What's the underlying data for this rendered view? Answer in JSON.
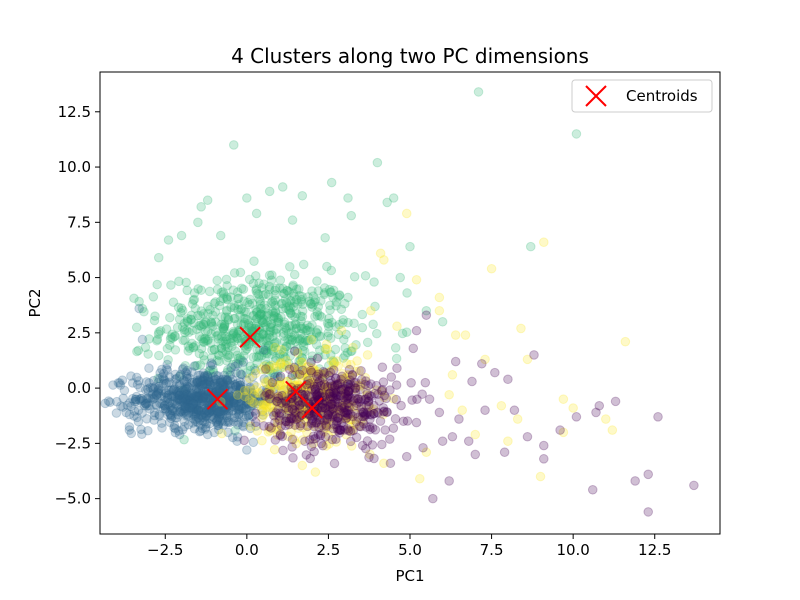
{
  "chart_data": {
    "type": "scatter",
    "title": "4 Clusters along two PC dimensions",
    "xlabel": "PC1",
    "ylabel": "PC2",
    "xlim": [
      -4.5,
      14.5
    ],
    "ylim": [
      -6.6,
      14.3
    ],
    "xticks": [
      -2.5,
      0.0,
      2.5,
      5.0,
      7.5,
      10.0,
      12.5
    ],
    "yticks": [
      -5.0,
      -2.5,
      0.0,
      2.5,
      5.0,
      7.5,
      10.0,
      12.5
    ],
    "grid": false,
    "legend_position": "top-right",
    "cluster_colors": [
      "#440154",
      "#31688e",
      "#35b779",
      "#fde725"
    ],
    "centroid_color": "#ff0000",
    "series": [
      {
        "cluster": 0,
        "color": "#440154",
        "core": {
          "center": [
            2.6,
            -0.8
          ],
          "spread": [
            1.0,
            0.9
          ],
          "count": 420
        },
        "points": [
          [
            13.7,
            -4.4
          ],
          [
            12.3,
            -5.6
          ],
          [
            12.3,
            -3.9
          ],
          [
            11.9,
            -4.2
          ],
          [
            10.6,
            -4.6
          ],
          [
            12.6,
            -1.3
          ],
          [
            11.3,
            -0.6
          ],
          [
            10.8,
            -0.8
          ],
          [
            10.7,
            -1.1
          ],
          [
            10.1,
            -1.3
          ],
          [
            9.6,
            -1.9
          ],
          [
            9.1,
            -2.6
          ],
          [
            9.1,
            -3.2
          ],
          [
            8.6,
            -2.2
          ],
          [
            8.2,
            -1.0
          ],
          [
            7.6,
            0.7
          ],
          [
            7.3,
            -1.0
          ],
          [
            7.0,
            -3.0
          ],
          [
            6.8,
            -2.4
          ],
          [
            6.5,
            -1.4
          ],
          [
            6.3,
            -2.2
          ],
          [
            6.2,
            -4.2
          ],
          [
            5.7,
            -5.0
          ],
          [
            5.6,
            -0.5
          ],
          [
            5.5,
            3.3
          ],
          [
            5.2,
            2.6
          ],
          [
            6.4,
            1.2
          ],
          [
            7.2,
            1.1
          ],
          [
            8.8,
            1.5
          ],
          [
            8.0,
            0.4
          ],
          [
            6.9,
            0.3
          ],
          [
            4.9,
            -3.1
          ],
          [
            5.4,
            -2.7
          ],
          [
            4.6,
            0.9
          ],
          [
            5.1,
            1.8
          ],
          [
            4.8,
            -1.5
          ],
          [
            6.0,
            -2.4
          ],
          [
            5.9,
            -1.1
          ],
          [
            4.4,
            -3.4
          ],
          [
            7.9,
            -2.9
          ]
        ]
      },
      {
        "cluster": 1,
        "color": "#31688e",
        "core": {
          "center": [
            -1.3,
            -0.5
          ],
          "spread": [
            1.1,
            0.65
          ],
          "count": 750
        },
        "points": [
          [
            -3.7,
            -1.1
          ],
          [
            -3.6,
            -1.9
          ],
          [
            -3.3,
            3.6
          ],
          [
            -3.2,
            2.2
          ],
          [
            -3.4,
            -0.6
          ],
          [
            -3.0,
            0.9
          ],
          [
            -0.3,
            -2.4
          ],
          [
            0.0,
            -2.8
          ],
          [
            -1.2,
            -2.1
          ],
          [
            -2.6,
            -1.8
          ]
        ]
      },
      {
        "cluster": 2,
        "color": "#35b779",
        "core": {
          "center": [
            0.4,
            2.7
          ],
          "spread": [
            1.5,
            1.2
          ],
          "count": 650
        },
        "points": [
          [
            7.1,
            13.4
          ],
          [
            10.1,
            11.5
          ],
          [
            -0.4,
            11.0
          ],
          [
            4.0,
            10.2
          ],
          [
            2.6,
            9.3
          ],
          [
            1.1,
            9.1
          ],
          [
            0.7,
            8.9
          ],
          [
            1.7,
            8.7
          ],
          [
            4.5,
            8.6
          ],
          [
            4.3,
            8.4
          ],
          [
            3.1,
            8.6
          ],
          [
            -1.4,
            8.2
          ],
          [
            -1.2,
            8.5
          ],
          [
            0.0,
            8.6
          ],
          [
            -2.4,
            6.7
          ],
          [
            -1.5,
            7.5
          ],
          [
            8.7,
            6.4
          ],
          [
            3.2,
            7.8
          ],
          [
            5.0,
            6.4
          ],
          [
            4.7,
            5.0
          ],
          [
            5.5,
            3.5
          ],
          [
            -2.7,
            5.9
          ],
          [
            -3.2,
            3.6
          ],
          [
            -2.0,
            6.9
          ],
          [
            3.9,
            4.8
          ],
          [
            2.4,
            6.8
          ],
          [
            1.4,
            7.6
          ],
          [
            0.3,
            7.9
          ],
          [
            6.0,
            3.0
          ],
          [
            -0.8,
            6.9
          ]
        ]
      },
      {
        "cluster": 3,
        "color": "#fde725",
        "core": {
          "center": [
            1.9,
            -0.4
          ],
          "spread": [
            0.9,
            0.9
          ],
          "count": 420
        },
        "points": [
          [
            7.5,
            5.4
          ],
          [
            9.1,
            6.6
          ],
          [
            11.6,
            2.1
          ],
          [
            10.0,
            -0.9
          ],
          [
            9.7,
            -0.5
          ],
          [
            11.0,
            -1.4
          ],
          [
            11.2,
            -1.9
          ],
          [
            9.0,
            -4.0
          ],
          [
            8.4,
            2.7
          ],
          [
            8.6,
            1.3
          ],
          [
            7.3,
            1.3
          ],
          [
            6.7,
            2.4
          ],
          [
            6.4,
            2.4
          ],
          [
            5.9,
            3.5
          ],
          [
            4.9,
            7.9
          ],
          [
            4.2,
            5.8
          ],
          [
            5.2,
            4.9
          ],
          [
            4.1,
            6.1
          ],
          [
            6.2,
            -0.3
          ],
          [
            7.8,
            -0.8
          ],
          [
            8.3,
            -1.4
          ],
          [
            7.0,
            -2.1
          ],
          [
            5.3,
            -4.1
          ],
          [
            1.7,
            -3.5
          ],
          [
            2.1,
            -3.8
          ],
          [
            4.2,
            -3.4
          ],
          [
            3.7,
            1.5
          ],
          [
            4.6,
            2.8
          ],
          [
            2.9,
            2.6
          ],
          [
            3.8,
            3.5
          ],
          [
            6.3,
            0.6
          ],
          [
            6.6,
            -1.0
          ],
          [
            8.0,
            -2.4
          ],
          [
            5.9,
            4.1
          ],
          [
            9.7,
            -2.0
          ],
          [
            5.5,
            -2.9
          ]
        ]
      }
    ],
    "centroids": {
      "name": "Centroids",
      "points": [
        [
          2.0,
          -0.9
        ],
        [
          -0.9,
          -0.5
        ],
        [
          0.1,
          2.3
        ],
        [
          1.5,
          -0.15
        ]
      ]
    }
  }
}
